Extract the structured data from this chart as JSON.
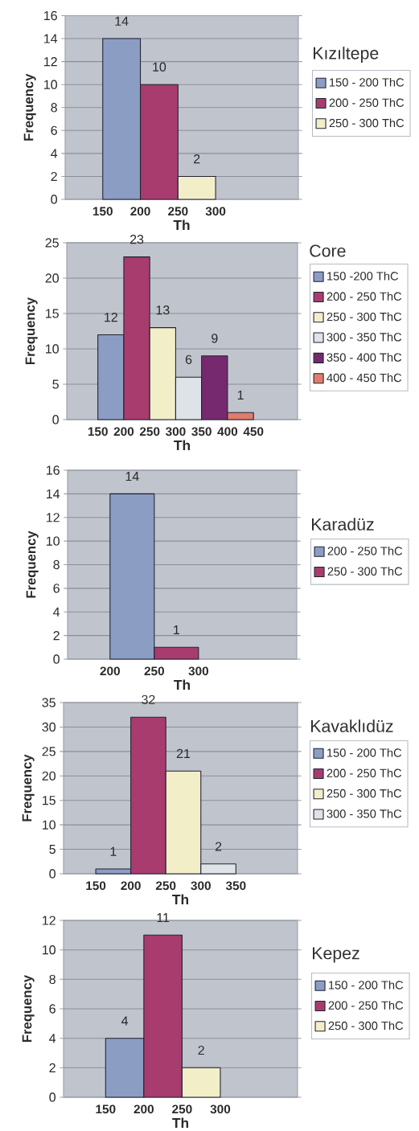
{
  "chart_data": [
    {
      "type": "histogram",
      "legend_title": "Kızıltepe",
      "xlabel": "Th",
      "ylabel": "Frequency",
      "bins": [
        150,
        200,
        250,
        300
      ],
      "xlim": [
        100,
        410
      ],
      "xticks": [
        150,
        200,
        250,
        300
      ],
      "ylim": [
        0,
        16
      ],
      "yticks": [
        0,
        2,
        4,
        6,
        8,
        10,
        12,
        14,
        16
      ],
      "grid": "y",
      "legend": "right",
      "data_labels": true,
      "series": [
        {
          "name": "150 - 200 ThC",
          "color": "#8b9dc3",
          "values": [
            14,
            null,
            null
          ]
        },
        {
          "name": "200 - 250 ThC",
          "color": "#a83c6e",
          "values": [
            null,
            10,
            null
          ]
        },
        {
          "name": "250 - 300 ThC",
          "color": "#f2eec8",
          "values": [
            null,
            null,
            2
          ]
        }
      ]
    },
    {
      "type": "histogram",
      "legend_title": "Core",
      "xlabel": "Th",
      "ylabel": "Frequency",
      "bins": [
        150,
        200,
        250,
        300,
        350,
        400,
        450
      ],
      "xlim": [
        90,
        535
      ],
      "xticks": [
        150,
        200,
        250,
        300,
        350,
        400,
        450
      ],
      "ylim": [
        0,
        25
      ],
      "yticks": [
        0,
        5,
        10,
        15,
        20,
        25
      ],
      "grid": "y",
      "legend": "right",
      "data_labels": true,
      "series": [
        {
          "name": "150 -200 ThC",
          "color": "#8b9dc3",
          "values": [
            12,
            null,
            null,
            null,
            null,
            null
          ]
        },
        {
          "name": "200 - 250 ThC",
          "color": "#a83c6e",
          "values": [
            null,
            23,
            null,
            null,
            null,
            null
          ]
        },
        {
          "name": "250 - 300 ThC",
          "color": "#f2eec8",
          "values": [
            null,
            null,
            13,
            null,
            null,
            null
          ]
        },
        {
          "name": "300 - 350 ThC",
          "color": "#dde3e6",
          "values": [
            null,
            null,
            null,
            6,
            null,
            null
          ]
        },
        {
          "name": "350 - 400 ThC",
          "color": "#76296f",
          "values": [
            null,
            null,
            null,
            null,
            9,
            null
          ]
        },
        {
          "name": "400 - 450 ThC",
          "color": "#e07c6c",
          "values": [
            null,
            null,
            null,
            null,
            null,
            1
          ]
        }
      ]
    },
    {
      "type": "histogram",
      "legend_title": "Karadüz",
      "xlabel": "Th",
      "ylabel": "Frequency",
      "bins": [
        200,
        250,
        300
      ],
      "xlim": [
        152,
        411
      ],
      "xticks": [
        200,
        250,
        300
      ],
      "ylim": [
        0,
        16
      ],
      "yticks": [
        0,
        2,
        4,
        6,
        8,
        10,
        12,
        14,
        16
      ],
      "grid": "y",
      "legend": "right",
      "data_labels": true,
      "series": [
        {
          "name": "200 - 250 ThC",
          "color": "#8b9dc3",
          "values": [
            14,
            null
          ]
        },
        {
          "name": "250 - 300 ThC",
          "color": "#a83c6e",
          "values": [
            null,
            1
          ]
        }
      ]
    },
    {
      "type": "histogram",
      "legend_title": "Kavaklıdüz",
      "xlabel": "Th",
      "ylabel": "Frequency",
      "bins": [
        150,
        200,
        250,
        300,
        350
      ],
      "xlim": [
        104,
        438
      ],
      "xticks": [
        150,
        200,
        250,
        300,
        350
      ],
      "ylim": [
        0,
        35
      ],
      "yticks": [
        0,
        5,
        10,
        15,
        20,
        25,
        30,
        35
      ],
      "grid": "y",
      "legend": "right",
      "data_labels": true,
      "series": [
        {
          "name": "150 - 200 ThC",
          "color": "#8b9dc3",
          "values": [
            1,
            null,
            null,
            null
          ]
        },
        {
          "name": "200 - 250 ThC",
          "color": "#a83c6e",
          "values": [
            null,
            32,
            null,
            null
          ]
        },
        {
          "name": "250 - 300 ThC",
          "color": "#f2eec8",
          "values": [
            null,
            null,
            21,
            null
          ]
        },
        {
          "name": "300 - 350 ThC",
          "color": "#dde3e6",
          "values": [
            null,
            null,
            null,
            2
          ]
        }
      ]
    },
    {
      "type": "histogram",
      "legend_title": "Kepez",
      "xlabel": "Th",
      "ylabel": "Frequency",
      "bins": [
        150,
        200,
        250,
        300
      ],
      "xlim": [
        95,
        401
      ],
      "xticks": [
        150,
        200,
        250,
        300
      ],
      "ylim": [
        0,
        12
      ],
      "yticks": [
        0,
        2,
        4,
        6,
        8,
        10,
        12
      ],
      "grid": "y",
      "legend": "right",
      "data_labels": true,
      "series": [
        {
          "name": "150 - 200 ThC",
          "color": "#8b9dc3",
          "values": [
            4,
            null,
            null
          ]
        },
        {
          "name": "200 - 250 ThC",
          "color": "#a83c6e",
          "values": [
            null,
            11,
            null
          ]
        },
        {
          "name": "250 - 300 ThC",
          "color": "#f2eec8",
          "values": [
            null,
            null,
            2
          ]
        }
      ]
    }
  ]
}
